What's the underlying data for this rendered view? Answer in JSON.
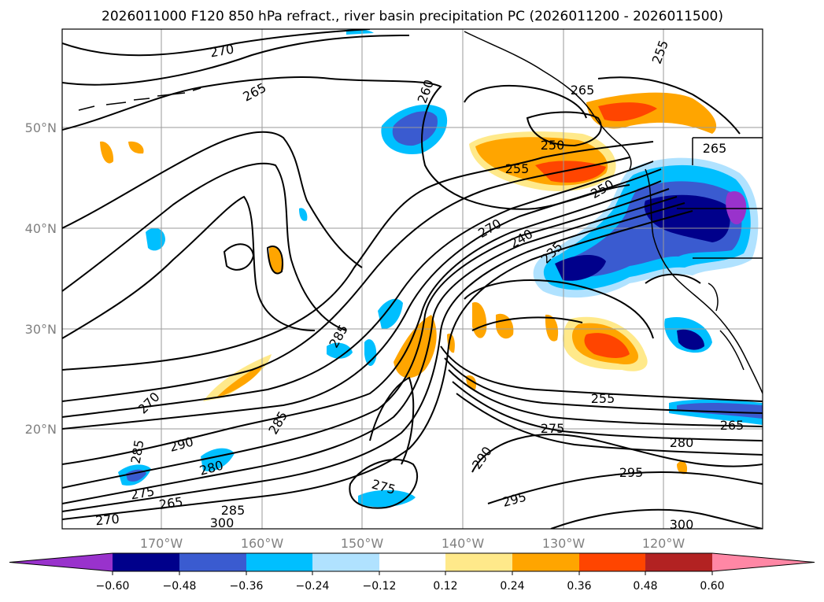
{
  "title": "2026011000 F120 850 hPa refract., river basin precipitation PC (2026011200 - 2026011500)",
  "map": {
    "lat_labels": [
      "50°N",
      "40°N",
      "30°N",
      "20°N"
    ],
    "lon_labels": [
      "170°W",
      "160°W",
      "150°W",
      "140°W",
      "130°W",
      "120°W"
    ],
    "contour_labels": [
      "270",
      "265",
      "260",
      "255",
      "250",
      "255",
      "265",
      "265",
      "250",
      "270",
      "240",
      "235",
      "285",
      "270",
      "285",
      "290",
      "280",
      "275",
      "265",
      "270",
      "285",
      "300",
      "275",
      "255",
      "275",
      "280",
      "290",
      "295",
      "295",
      "265",
      "300",
      "285"
    ]
  },
  "colorbar": {
    "ticks": [
      "−0.60",
      "−0.48",
      "−0.36",
      "−0.24",
      "−0.12",
      "0.12",
      "0.24",
      "0.36",
      "0.48",
      "0.60"
    ],
    "colors": [
      "#9932cc",
      "#00008b",
      "#3a5bd0",
      "#00bfff",
      "#b0e2ff",
      "#ffffff",
      "#ffe98a",
      "#ffa500",
      "#ff4500",
      "#b22222",
      "#ff87a5"
    ]
  }
}
